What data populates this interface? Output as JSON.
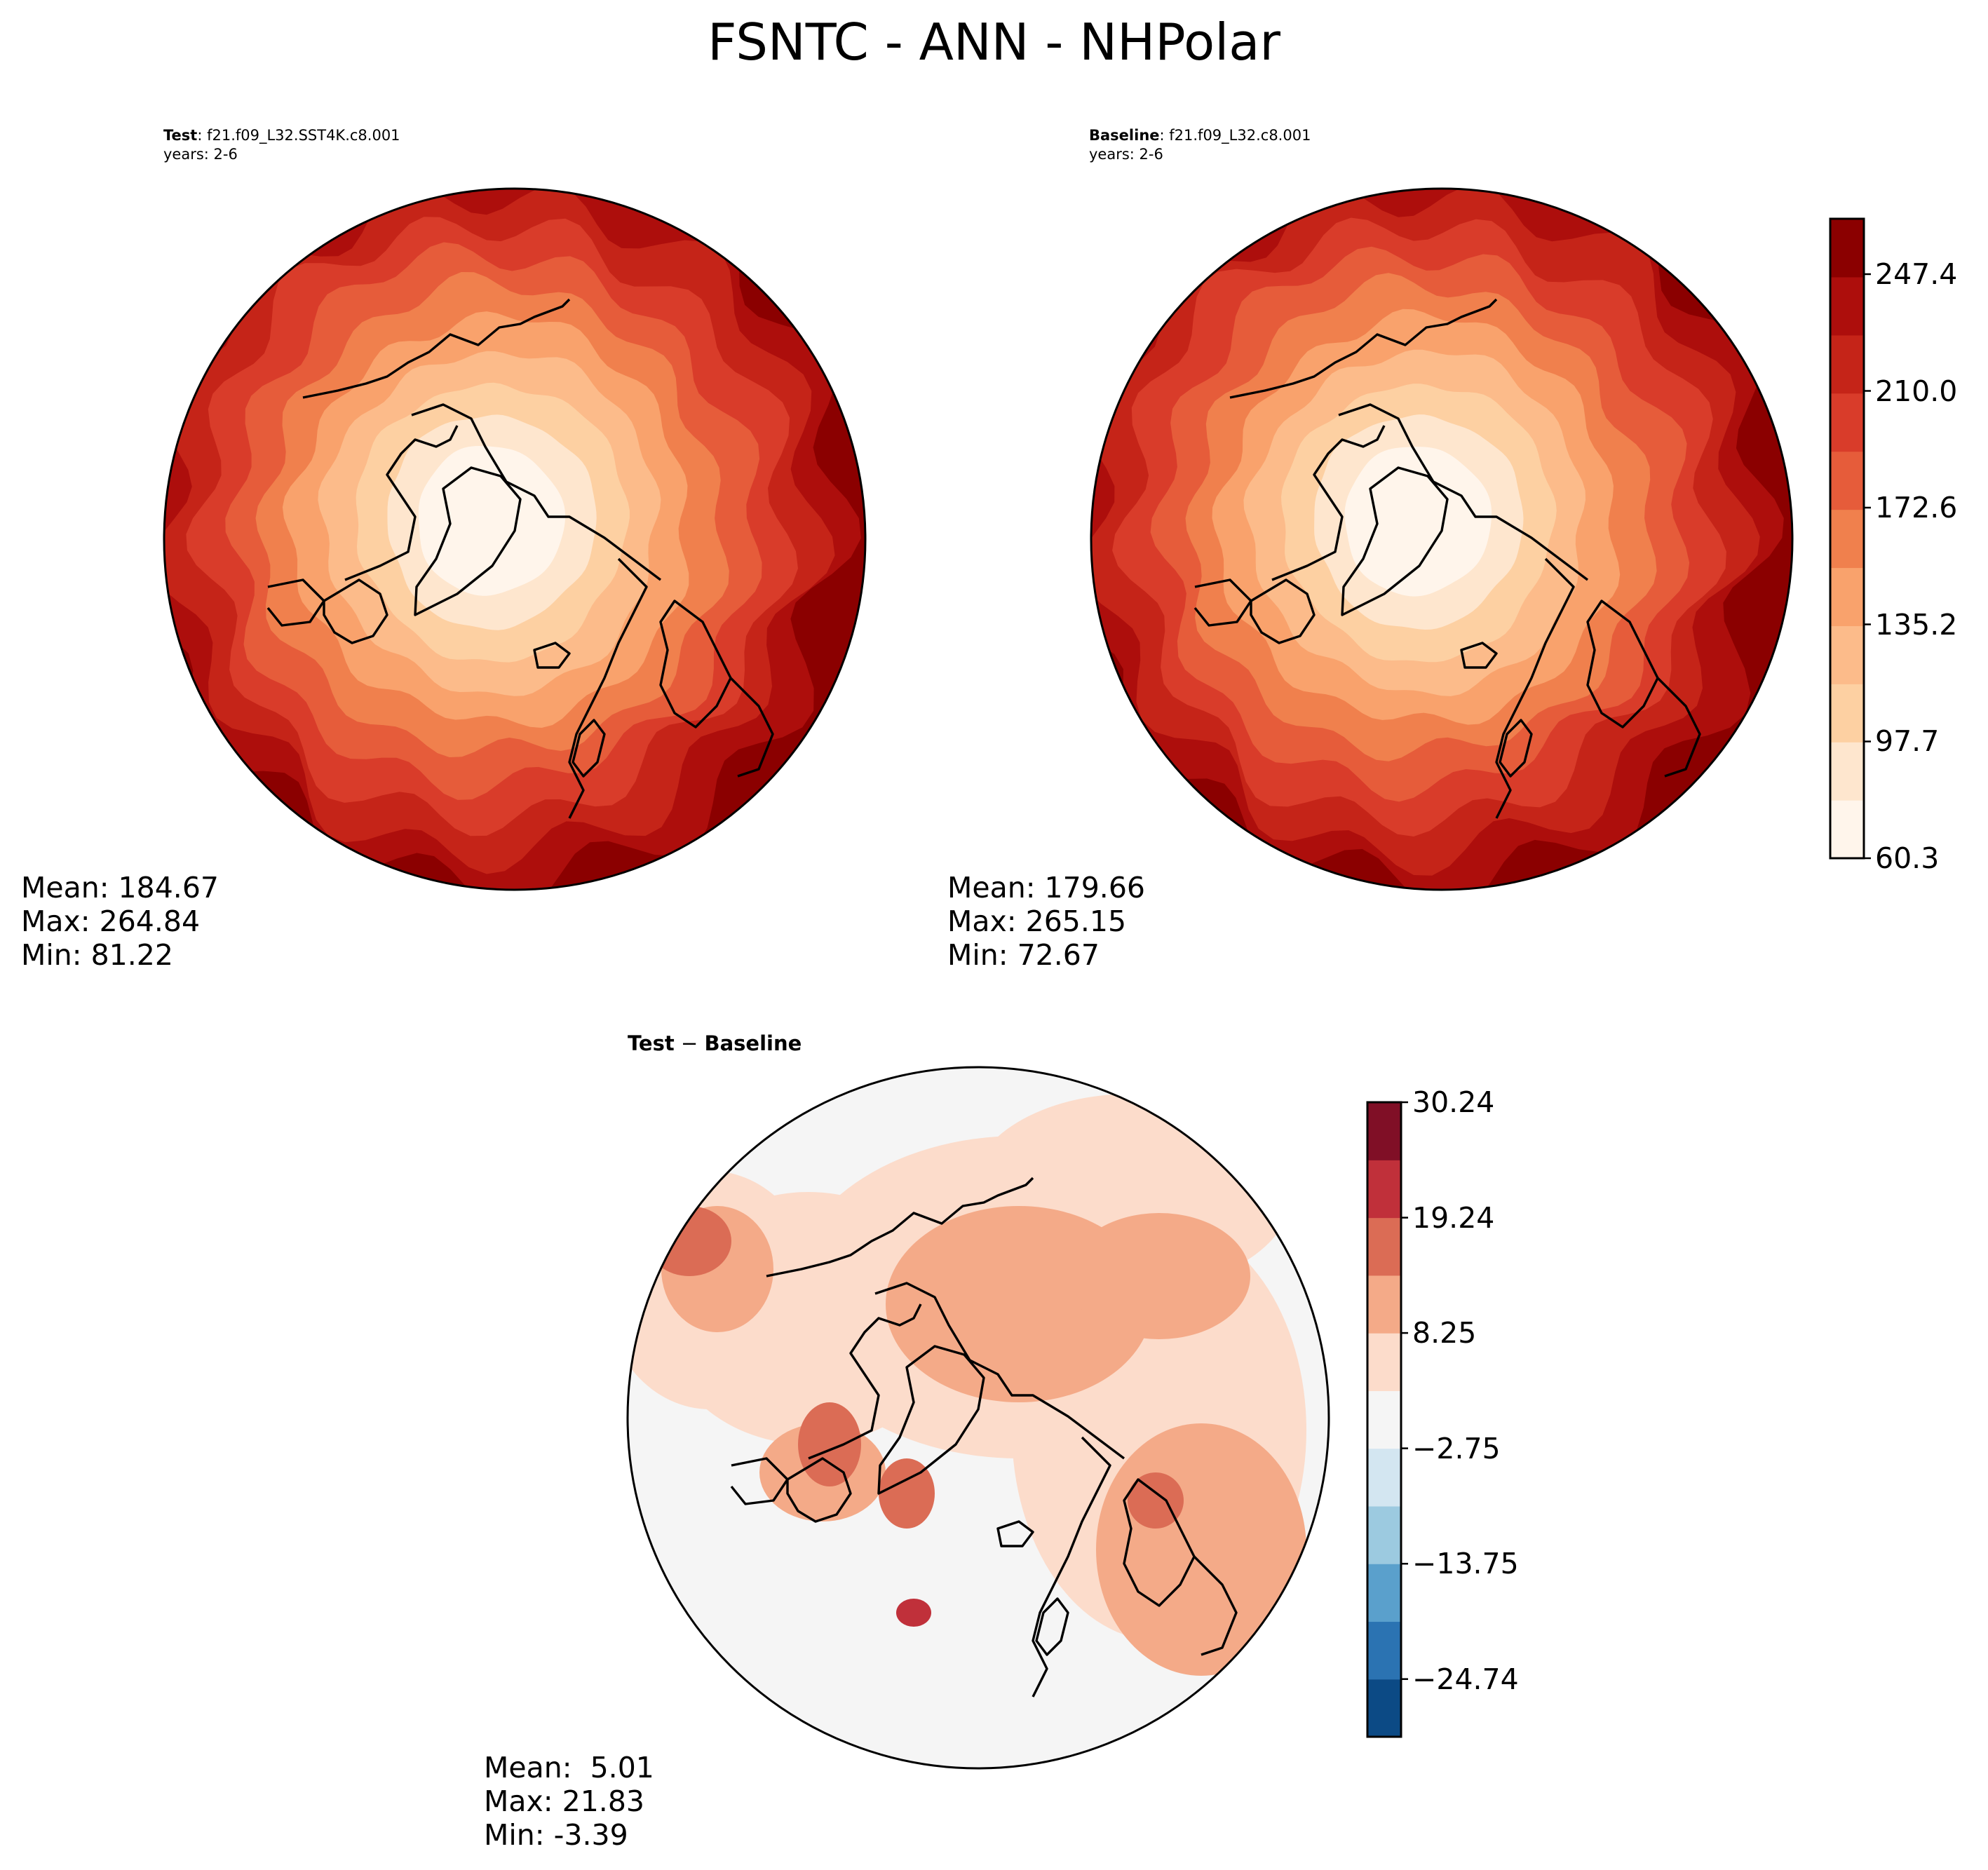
{
  "figure": {
    "title": "FSNTC - ANN - NHPolar"
  },
  "panels": {
    "test": {
      "label": "Test",
      "case": ": f21.f09_L32.SST4K.c8.001",
      "years": "years: 2-6",
      "mean": "Mean: 184.67",
      "max": "Max: 264.84",
      "min": "Min: 81.22"
    },
    "baseline": {
      "label": "Baseline",
      "case": ": f21.f09_L32.c8.001",
      "years": "years: 2-6",
      "mean": "Mean: 179.66",
      "max": "Max: 265.15",
      "min": "Min: 72.67"
    },
    "diff": {
      "title_a": "Test",
      "title_sep": " − ",
      "title_b": "Baseline",
      "mean": "Mean:  5.01",
      "max": "Max: 21.83",
      "min": "Min: -3.39"
    }
  },
  "colors": {
    "main_levels": [
      "#fff5eb",
      "#fee6ce",
      "#fdd0a2",
      "#fdae6b",
      "#fd8d3c",
      "#f16913",
      "#e6550d",
      "#d94801",
      "#c0311c",
      "#a50f15",
      "#8b0000"
    ],
    "reds": [
      "#fff5eb",
      "#fee6ce",
      "#fdd0a2",
      "#fcbb8a",
      "#f9a26c",
      "#f0804d",
      "#e65c3a",
      "#d93c2a",
      "#c52418",
      "#ad0e0c",
      "#8b0000"
    ],
    "diff_levels": [
      "#08306b",
      "#2171b5",
      "#4292c6",
      "#9ecae1",
      "#d1e5f0",
      "#f7f7f7",
      "#fddbc7",
      "#f4a582",
      "#d6604d",
      "#b2182b",
      "#67001f"
    ],
    "diff_cmap": [
      "#0c4a85",
      "#2b73b2",
      "#5aa0cc",
      "#9ccae0",
      "#d3e6f1",
      "#f5f5f5",
      "#fcdccb",
      "#f4aa88",
      "#db6c55",
      "#c0303a",
      "#800f26"
    ]
  },
  "chart_data": [
    {
      "type": "heatmap",
      "name": "Test",
      "projection": "north-polar-stereographic",
      "mean": 184.67,
      "max": 264.84,
      "min": 81.22,
      "field": "FSNTC annual mean, decreasing poleward (lowest over Greenland / central Arctic, highest at low-latitude rim)"
    },
    {
      "type": "heatmap",
      "name": "Baseline",
      "projection": "north-polar-stereographic",
      "mean": 179.66,
      "max": 265.15,
      "min": 72.67,
      "colorbar": {
        "ticks": [
          60.3,
          97.7,
          135.2,
          172.6,
          210.0,
          247.4
        ],
        "tick_labels": [
          "60.3",
          "97.7",
          "135.2",
          "172.6",
          "210.0",
          "247.4"
        ],
        "range": [
          60.3,
          265.15
        ],
        "levels": 11
      }
    },
    {
      "type": "heatmap",
      "name": "Test − Baseline",
      "projection": "north-polar-stereographic",
      "mean": 5.01,
      "max": 21.83,
      "min": -3.39,
      "colorbar": {
        "ticks": [
          -24.74,
          -13.75,
          -2.75,
          8.25,
          19.24,
          30.24
        ],
        "tick_labels": [
          "−24.74",
          "−13.75",
          "−2.75",
          "8.25",
          "19.24",
          "30.24"
        ],
        "range": [
          -30.24,
          30.24
        ],
        "levels": 11
      }
    }
  ]
}
